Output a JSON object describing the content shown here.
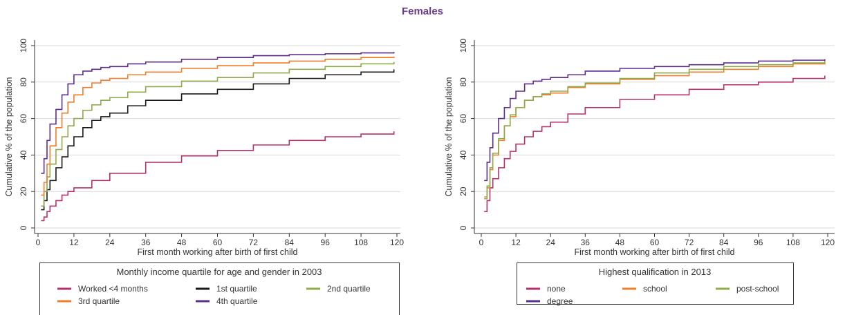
{
  "page": {
    "title": "Females"
  },
  "chart_data": [
    {
      "type": "line",
      "title": "",
      "xlabel": "First month working after birth of first child",
      "ylabel": "Cumulative % of the population",
      "xlim": [
        0,
        120
      ],
      "ylim": [
        0,
        100
      ],
      "xticks": [
        0,
        12,
        24,
        36,
        48,
        60,
        72,
        84,
        96,
        108,
        120
      ],
      "yticks": [
        0,
        20,
        40,
        60,
        80,
        100
      ],
      "grid": "horizontal",
      "legend": {
        "title": "Monthly income quartile for age and gender in 2003",
        "placement": "bottom"
      },
      "series": [
        {
          "name": "Worked <4 months",
          "color": "#b5306b",
          "x": [
            1,
            2,
            3,
            4,
            6,
            8,
            10,
            12,
            18,
            24,
            36,
            48,
            60,
            72,
            84,
            96,
            108,
            119
          ],
          "y": [
            4,
            6,
            9,
            12,
            15,
            18,
            20,
            22,
            26,
            30,
            36,
            39.5,
            42.5,
            45.5,
            48,
            50,
            51.5,
            53
          ]
        },
        {
          "name": "1st quartile",
          "color": "#1a1a1a",
          "x": [
            1,
            2,
            3,
            4,
            6,
            8,
            10,
            12,
            15,
            18,
            21,
            24,
            30,
            36,
            48,
            60,
            72,
            84,
            96,
            108,
            119
          ],
          "y": [
            10,
            15,
            21,
            26,
            33,
            39,
            45,
            50,
            55,
            59,
            61,
            63,
            67,
            70,
            73.5,
            76,
            79,
            82,
            84,
            85.5,
            87
          ]
        },
        {
          "name": "2nd quartile",
          "color": "#8faa4a",
          "x": [
            1,
            2,
            3,
            4,
            6,
            8,
            10,
            12,
            15,
            18,
            21,
            24,
            30,
            36,
            48,
            60,
            72,
            84,
            96,
            108,
            119
          ],
          "y": [
            12,
            20,
            28,
            35,
            43,
            50,
            56,
            60,
            64.5,
            67.5,
            70,
            71.5,
            74.5,
            77.5,
            80.5,
            82.5,
            85,
            87,
            88.5,
            90,
            91
          ]
        },
        {
          "name": "3rd quartile",
          "color": "#f07d2a",
          "x": [
            1,
            2,
            3,
            4,
            6,
            8,
            10,
            12,
            15,
            18,
            21,
            24,
            30,
            36,
            48,
            60,
            72,
            84,
            96,
            108,
            119
          ],
          "y": [
            18,
            25,
            35,
            45,
            55,
            63,
            69,
            73,
            77,
            79.5,
            81,
            82,
            84,
            85.5,
            87.5,
            89,
            90.5,
            91.5,
            92.5,
            93.5,
            94
          ]
        },
        {
          "name": "4th quartile",
          "color": "#5b2d8c",
          "x": [
            1,
            2,
            3,
            4,
            6,
            8,
            10,
            12,
            15,
            18,
            21,
            24,
            30,
            36,
            48,
            60,
            72,
            84,
            96,
            108,
            119
          ],
          "y": [
            30,
            38,
            48,
            57,
            65,
            73,
            79,
            84,
            86,
            87,
            88,
            88.5,
            90,
            91,
            92.5,
            93.5,
            94.5,
            95,
            95.5,
            96,
            96.5
          ]
        }
      ]
    },
    {
      "type": "line",
      "title": "",
      "xlabel": "First month working after birth of first child",
      "ylabel": "Cumulative % of the population",
      "xlim": [
        0,
        120
      ],
      "ylim": [
        0,
        100
      ],
      "xticks": [
        0,
        12,
        24,
        36,
        48,
        60,
        72,
        84,
        96,
        108,
        120
      ],
      "yticks": [
        0,
        20,
        40,
        60,
        80,
        100
      ],
      "grid": "horizontal",
      "legend": {
        "title": "Highest qualification in 2013",
        "placement": "bottom"
      },
      "series": [
        {
          "name": "none",
          "color": "#b5306b",
          "x": [
            1,
            2,
            3,
            4,
            6,
            8,
            10,
            12,
            15,
            18,
            21,
            24,
            30,
            36,
            48,
            60,
            72,
            84,
            96,
            108,
            119
          ],
          "y": [
            9,
            15,
            22,
            27,
            33,
            38,
            42,
            46,
            50,
            53,
            55.5,
            58,
            62.5,
            66,
            70.5,
            73,
            76,
            78.5,
            80,
            82,
            83.5
          ]
        },
        {
          "name": "school",
          "color": "#f07d2a",
          "x": [
            1,
            2,
            3,
            4,
            6,
            8,
            10,
            12,
            15,
            18,
            21,
            24,
            30,
            36,
            48,
            60,
            72,
            84,
            96,
            108,
            119
          ],
          "y": [
            17,
            22,
            32,
            40,
            48,
            56,
            61,
            66,
            70,
            72,
            73,
            74,
            77,
            79,
            81.5,
            83.5,
            85.5,
            87,
            88.5,
            90,
            91
          ]
        },
        {
          "name": "post-school",
          "color": "#8faa4a",
          "x": [
            1,
            2,
            3,
            4,
            6,
            8,
            10,
            12,
            15,
            18,
            21,
            24,
            30,
            36,
            48,
            60,
            72,
            84,
            96,
            108,
            119
          ],
          "y": [
            16,
            23,
            33,
            41,
            49,
            56,
            62,
            66,
            70,
            72,
            73.5,
            75,
            77.5,
            79.5,
            82,
            85,
            87,
            88.5,
            89.5,
            90.5,
            92
          ]
        },
        {
          "name": "degree",
          "color": "#5b2d8c",
          "x": [
            1,
            2,
            3,
            4,
            6,
            8,
            10,
            12,
            15,
            18,
            21,
            24,
            30,
            36,
            48,
            60,
            72,
            84,
            96,
            108,
            119
          ],
          "y": [
            26,
            36,
            44,
            52,
            60,
            66,
            71,
            75,
            79,
            80.5,
            81.5,
            82.5,
            84,
            86,
            87.5,
            88.5,
            89.5,
            90.5,
            91.5,
            92,
            92.5
          ]
        }
      ]
    }
  ]
}
